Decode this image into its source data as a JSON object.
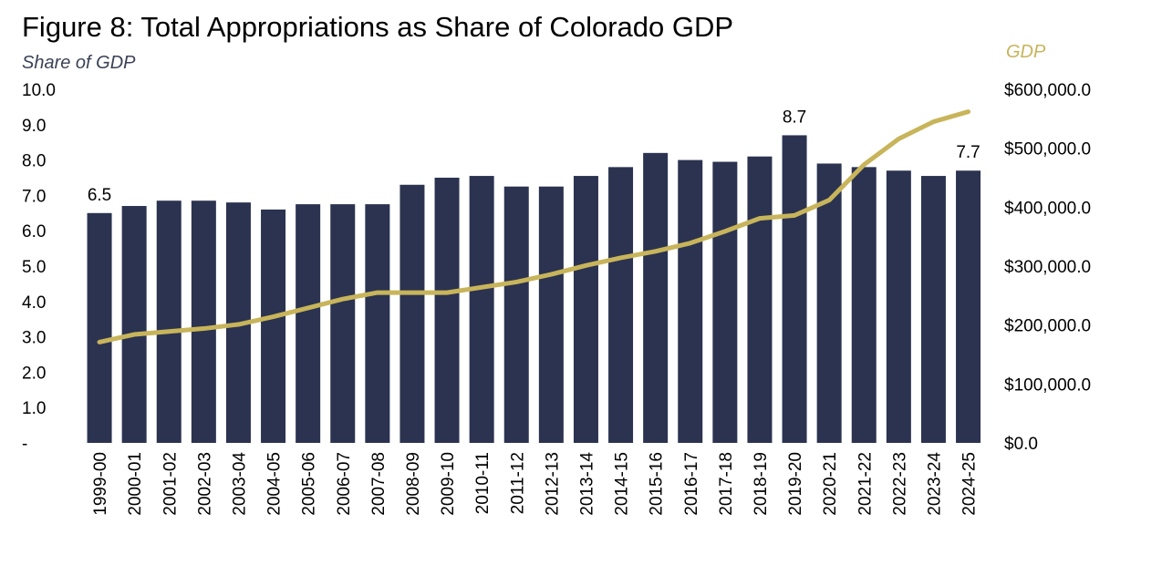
{
  "chart_data": {
    "type": "bar",
    "title": "Figure 8: Total Appropriations as Share of Colorado GDP",
    "ylabel": "Share of GDP",
    "y2label": "GDP",
    "categories": [
      "1999-00",
      "2000-01",
      "2001-02",
      "2002-03",
      "2003-04",
      "2004-05",
      "2005-06",
      "2006-07",
      "2007-08",
      "2008-09",
      "2009-10",
      "2010-11",
      "2011-12",
      "2012-13",
      "2013-14",
      "2014-15",
      "2015-16",
      "2016-17",
      "2017-18",
      "2018-19",
      "2019-20",
      "2020-21",
      "2021-22",
      "2022-23",
      "2023-24",
      "2024-25"
    ],
    "series": [
      {
        "type": "bar",
        "axis": "left",
        "color": "#2b3350",
        "values": [
          6.5,
          6.7,
          6.85,
          6.85,
          6.8,
          6.6,
          6.75,
          6.75,
          6.75,
          7.3,
          7.5,
          7.55,
          7.25,
          7.25,
          7.55,
          7.8,
          8.2,
          8.0,
          7.95,
          8.1,
          8.7,
          7.9,
          7.8,
          7.7,
          7.55,
          7.7
        ]
      },
      {
        "type": "line",
        "name": "GDP",
        "axis": "right",
        "color": "#c8b45a",
        "values": [
          171000,
          184000,
          189000,
          194000,
          201000,
          214000,
          229000,
          244000,
          255000,
          255000,
          255000,
          264000,
          273000,
          286000,
          301000,
          314000,
          325000,
          339000,
          359000,
          381000,
          386000,
          412000,
          472000,
          516000,
          545000,
          562000
        ]
      }
    ],
    "data_labels": [
      {
        "category": "1999-00",
        "text": "6.5"
      },
      {
        "category": "2019-20",
        "text": "8.7"
      },
      {
        "category": "2024-25",
        "text": "7.7"
      }
    ],
    "ylim": [
      0,
      10
    ],
    "y2lim": [
      0,
      600000
    ],
    "y_ticks": [
      "-",
      "1.0",
      "2.0",
      "3.0",
      "4.0",
      "5.0",
      "6.0",
      "7.0",
      "8.0",
      "9.0",
      "10.0"
    ],
    "y2_ticks": [
      "$0.0",
      "$100,000.0",
      "$200,000.0",
      "$300,000.0",
      "$400,000.0",
      "$500,000.0",
      "$600,000.0"
    ],
    "grid": false,
    "legend": "none",
    "colors": {
      "bar": "#2b3350",
      "line": "#c8b45a",
      "left_axis_title": "#3b4256",
      "right_axis_title": "#c8b45a"
    }
  }
}
